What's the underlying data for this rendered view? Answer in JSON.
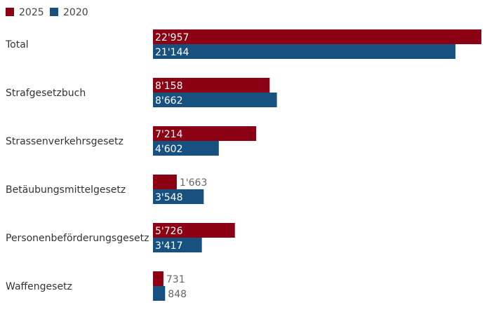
{
  "chart_data": {
    "type": "bar",
    "orientation": "horizontal",
    "categories": [
      "Total",
      "Strafgesetzbuch",
      "Strassenverkehrsgesetz",
      "Betäubungsmittelgesetz",
      "Personenbeförderungsgesetz",
      "Waffengesetz"
    ],
    "series": [
      {
        "name": "2025",
        "color": "#8c0014",
        "values": [
          22957,
          8158,
          7214,
          1663,
          5726,
          731
        ],
        "labels": [
          "22'957",
          "8'158",
          "7'214",
          "1'663",
          "5'726",
          "731"
        ]
      },
      {
        "name": "2020",
        "color": "#17517f",
        "values": [
          21144,
          8662,
          4602,
          3548,
          3417,
          848
        ],
        "labels": [
          "21'144",
          "8'662",
          "4'602",
          "3'548",
          "3'417",
          "848"
        ]
      }
    ],
    "xlim": [
      0,
      22957
    ],
    "legend_position": "top-left",
    "grid": false
  }
}
